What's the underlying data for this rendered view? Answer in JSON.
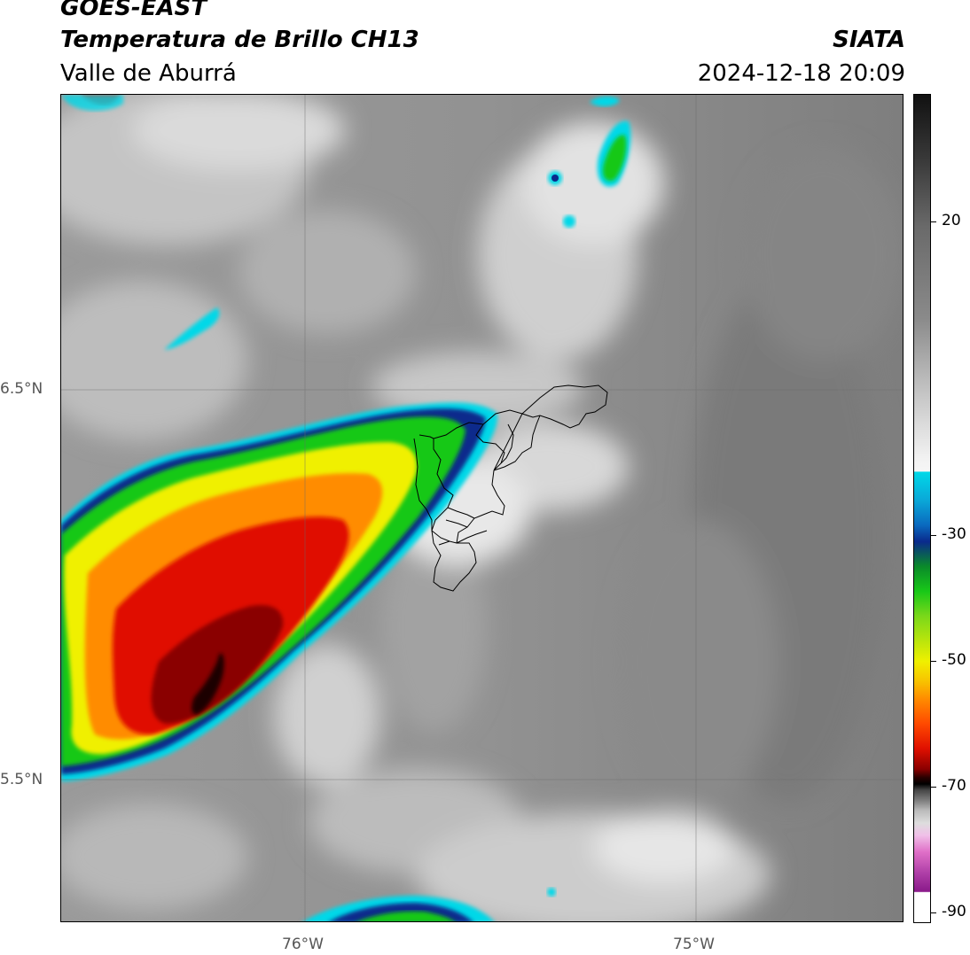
{
  "header": {
    "satellite": "GOES-EAST",
    "product": "Temperatura de Brillo CH13",
    "region": "Valle de Aburrá",
    "brand": "SIATA",
    "timestamp": "2024-12-18 20:09"
  },
  "axes": {
    "lat_labels": [
      "6.5°N",
      "5.5°N"
    ],
    "lon_labels": [
      "76°W",
      "75°W"
    ]
  },
  "colorbar": {
    "ticks": [
      "20",
      "-30",
      "-50",
      "-70",
      "-90"
    ],
    "colors": {
      "warm_top": "#111111",
      "warm_mid": "#8a8a8a",
      "light": "#f2f2f2",
      "cyan": "#00d8e8",
      "blue": "#0a2a8c",
      "green": "#18c818",
      "yellow": "#f0f000",
      "orange": "#ff8c00",
      "red": "#e01000",
      "dark_red": "#6a0000",
      "black": "#000000",
      "pink": "#e070c8",
      "purple": "#8a1a8a"
    }
  }
}
